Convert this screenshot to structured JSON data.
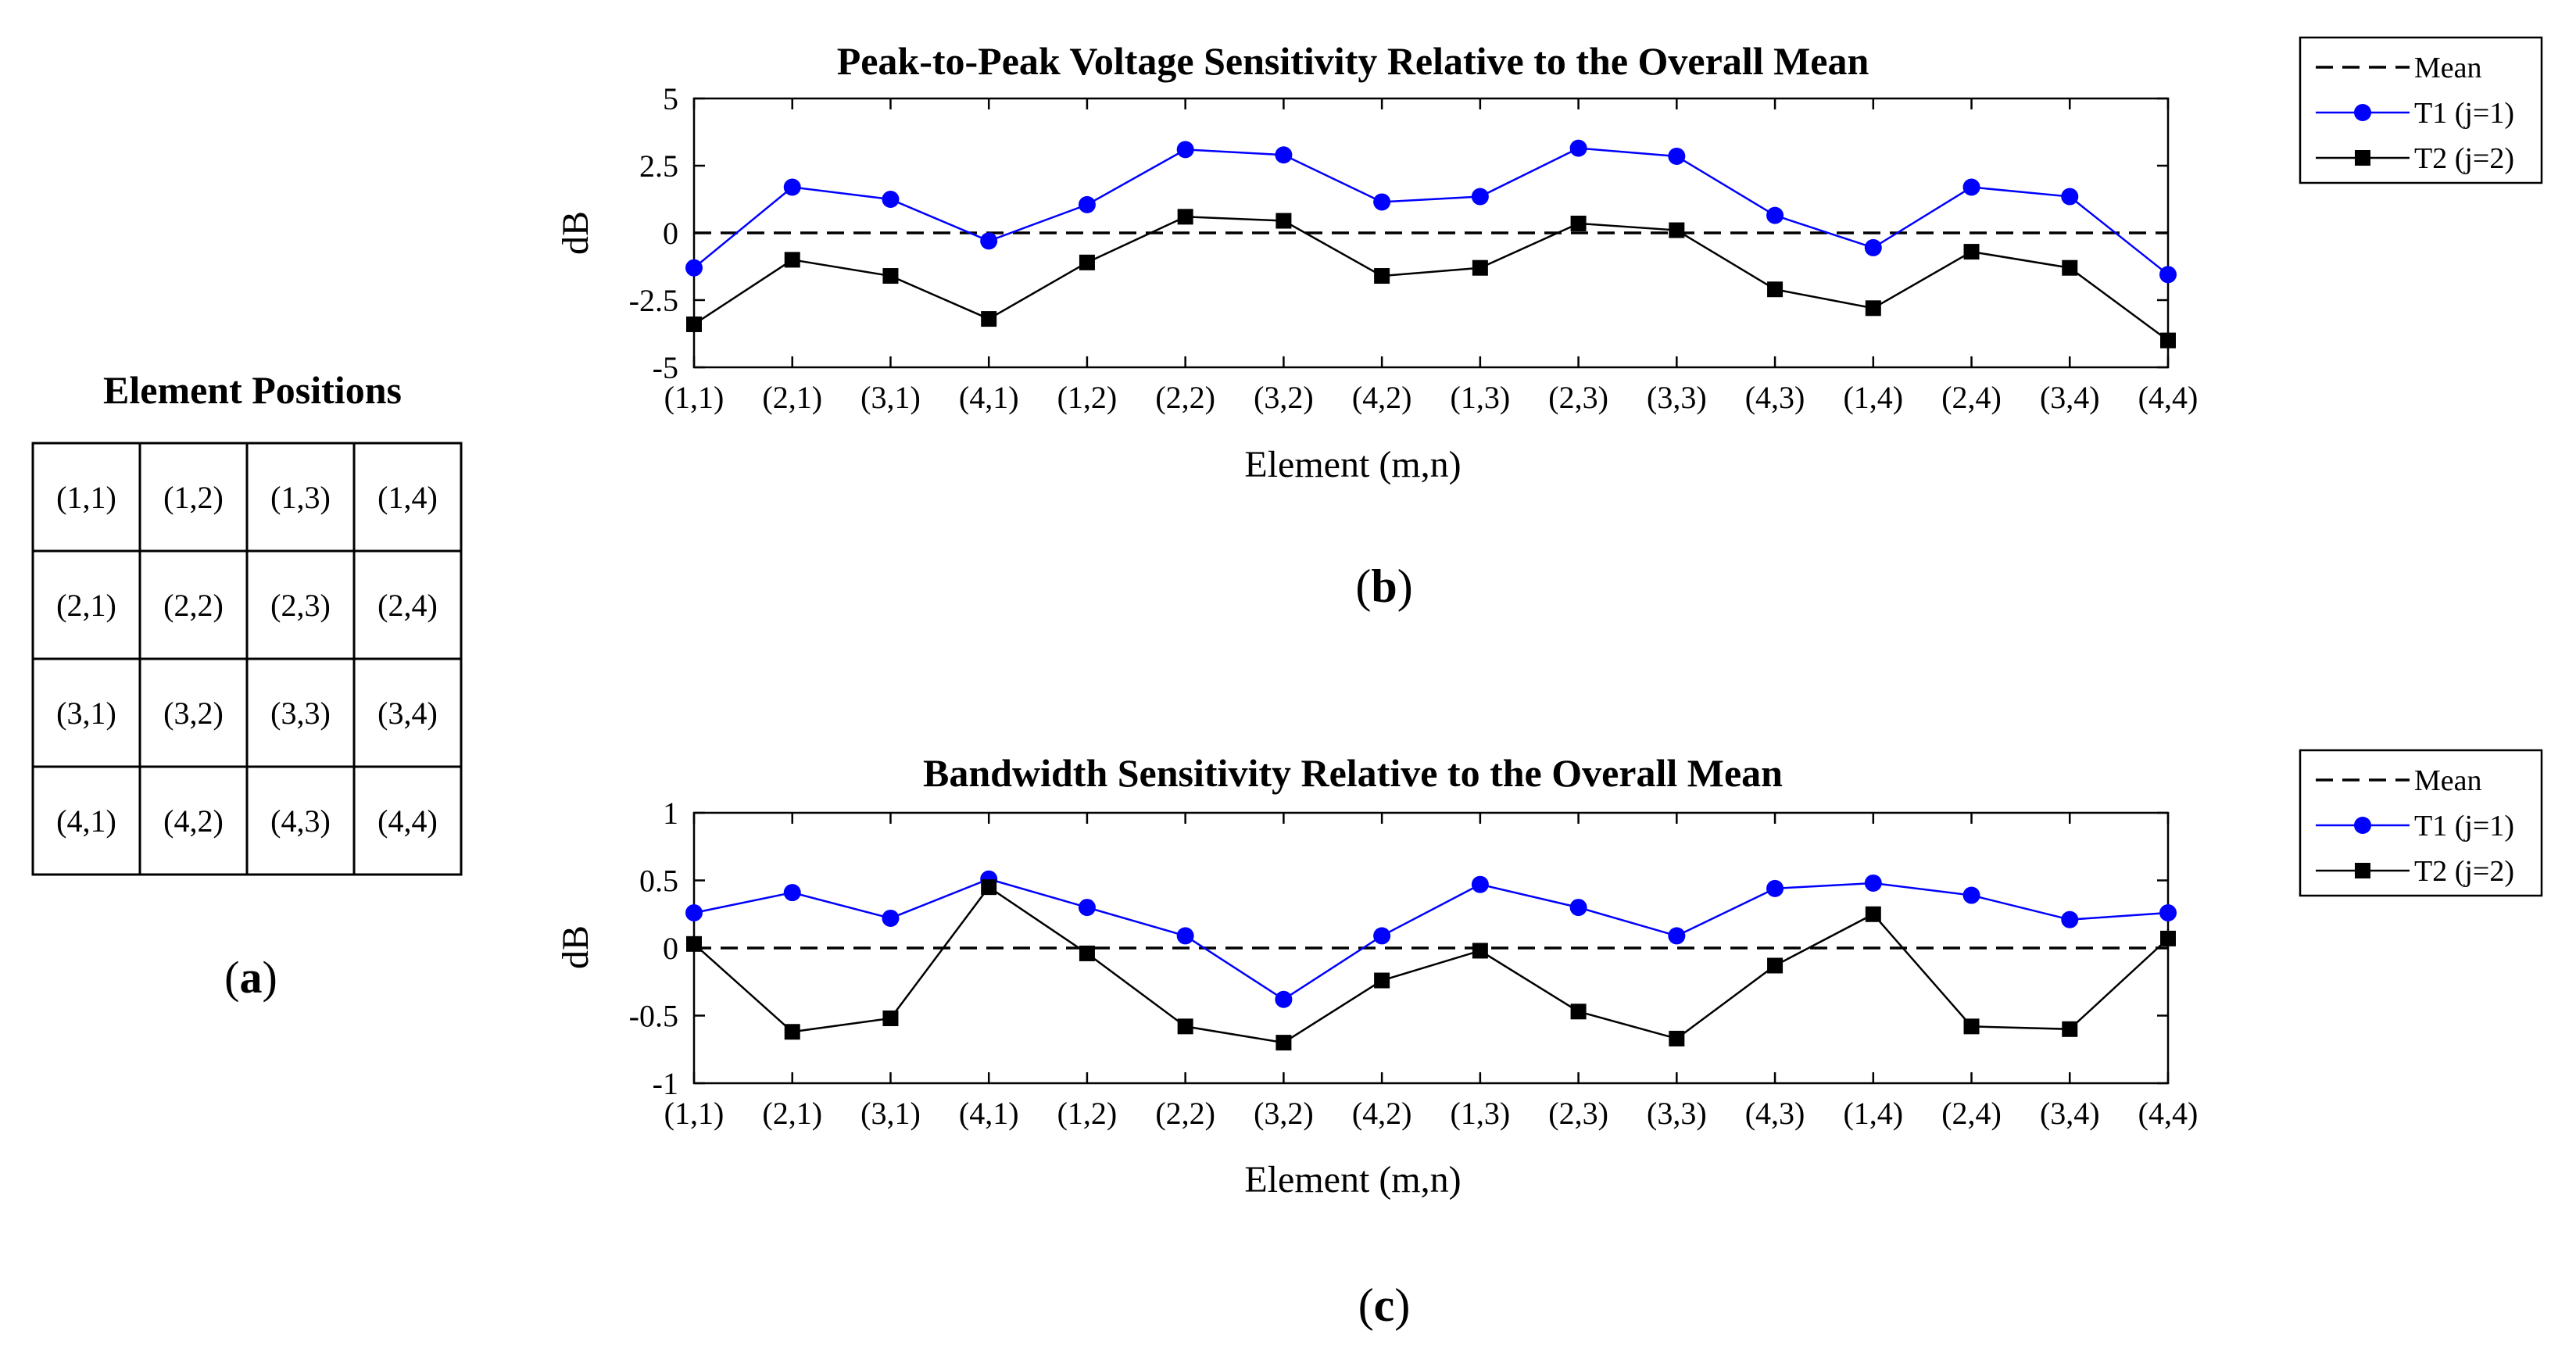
{
  "element_positions": {
    "title": "Element Positions",
    "grid": [
      [
        "(1,1)",
        "(1,2)",
        "(1,3)",
        "(1,4)"
      ],
      [
        "(2,1)",
        "(2,2)",
        "(2,3)",
        "(2,4)"
      ],
      [
        "(3,1)",
        "(3,2)",
        "(3,3)",
        "(3,4)"
      ],
      [
        "(4,1)",
        "(4,2)",
        "(4,3)",
        "(4,4)"
      ]
    ],
    "panel_label_open": "(",
    "panel_label_letter": "a",
    "panel_label_close": ")"
  },
  "colors": {
    "t1": "#0000ff",
    "t2": "#000000",
    "mean": "#000000"
  },
  "chart_data": [
    {
      "type": "line",
      "title": "Peak-to-Peak Voltage Sensitivity Relative to the Overall Mean",
      "xlabel": "Element (m,n)",
      "ylabel": "dB",
      "categories": [
        "(1,1)",
        "(2,1)",
        "(3,1)",
        "(4,1)",
        "(1,2)",
        "(2,2)",
        "(3,2)",
        "(4,2)",
        "(1,3)",
        "(2,3)",
        "(3,3)",
        "(4,3)",
        "(1,4)",
        "(2,4)",
        "(3,4)",
        "(4,4)"
      ],
      "ylim": [
        -5,
        5
      ],
      "yticks": [
        -5,
        -2.5,
        0,
        2.5,
        5
      ],
      "ytick_labels": [
        "-5",
        "-2.5",
        "0",
        "2.5",
        "5"
      ],
      "series": [
        {
          "name": "Mean",
          "style": "dashed",
          "values": [
            0,
            0,
            0,
            0,
            0,
            0,
            0,
            0,
            0,
            0,
            0,
            0,
            0,
            0,
            0,
            0
          ]
        },
        {
          "name": "T1 (j=1)",
          "marker": "circle",
          "values": [
            -1.3,
            1.7,
            1.25,
            -0.3,
            1.05,
            3.1,
            2.9,
            1.15,
            1.35,
            3.15,
            2.85,
            0.65,
            -0.55,
            1.7,
            1.35,
            -1.55
          ]
        },
        {
          "name": "T2 (j=2)",
          "marker": "square",
          "values": [
            -3.4,
            -1.0,
            -1.6,
            -3.2,
            -1.1,
            0.6,
            0.45,
            -1.6,
            -1.3,
            0.35,
            0.1,
            -2.1,
            -2.8,
            -0.7,
            -1.3,
            -4.0
          ]
        }
      ],
      "legend": [
        "Mean",
        "T1 (j=1)",
        "T2 (j=2)"
      ],
      "panel_label_open": "(",
      "panel_label_letter": "b",
      "panel_label_close": ")"
    },
    {
      "type": "line",
      "title": "Bandwidth Sensitivity Relative to the Overall Mean",
      "xlabel": "Element (m,n)",
      "ylabel": "dB",
      "categories": [
        "(1,1)",
        "(2,1)",
        "(3,1)",
        "(4,1)",
        "(1,2)",
        "(2,2)",
        "(3,2)",
        "(4,2)",
        "(1,3)",
        "(2,3)",
        "(3,3)",
        "(4,3)",
        "(1,4)",
        "(2,4)",
        "(3,4)",
        "(4,4)"
      ],
      "ylim": [
        -1,
        1
      ],
      "yticks": [
        -1,
        -0.5,
        0,
        0.5,
        1
      ],
      "ytick_labels": [
        "-1",
        "-0.5",
        "0",
        "0.5",
        "1"
      ],
      "series": [
        {
          "name": "Mean",
          "style": "dashed",
          "values": [
            0,
            0,
            0,
            0,
            0,
            0,
            0,
            0,
            0,
            0,
            0,
            0,
            0,
            0,
            0,
            0
          ]
        },
        {
          "name": "T1 (j=1)",
          "marker": "circle",
          "values": [
            0.26,
            0.41,
            0.22,
            0.51,
            0.3,
            0.09,
            -0.38,
            0.09,
            0.47,
            0.3,
            0.09,
            0.44,
            0.48,
            0.39,
            0.21,
            0.26
          ]
        },
        {
          "name": "T2 (j=2)",
          "marker": "square",
          "values": [
            0.03,
            -0.62,
            -0.52,
            0.45,
            -0.04,
            -0.58,
            -0.7,
            -0.24,
            -0.02,
            -0.47,
            -0.67,
            -0.13,
            0.25,
            -0.58,
            -0.6,
            0.07
          ]
        }
      ],
      "legend": [
        "Mean",
        "T1 (j=1)",
        "T2 (j=2)"
      ],
      "panel_label_open": "(",
      "panel_label_letter": "c",
      "panel_label_close": ")"
    }
  ]
}
